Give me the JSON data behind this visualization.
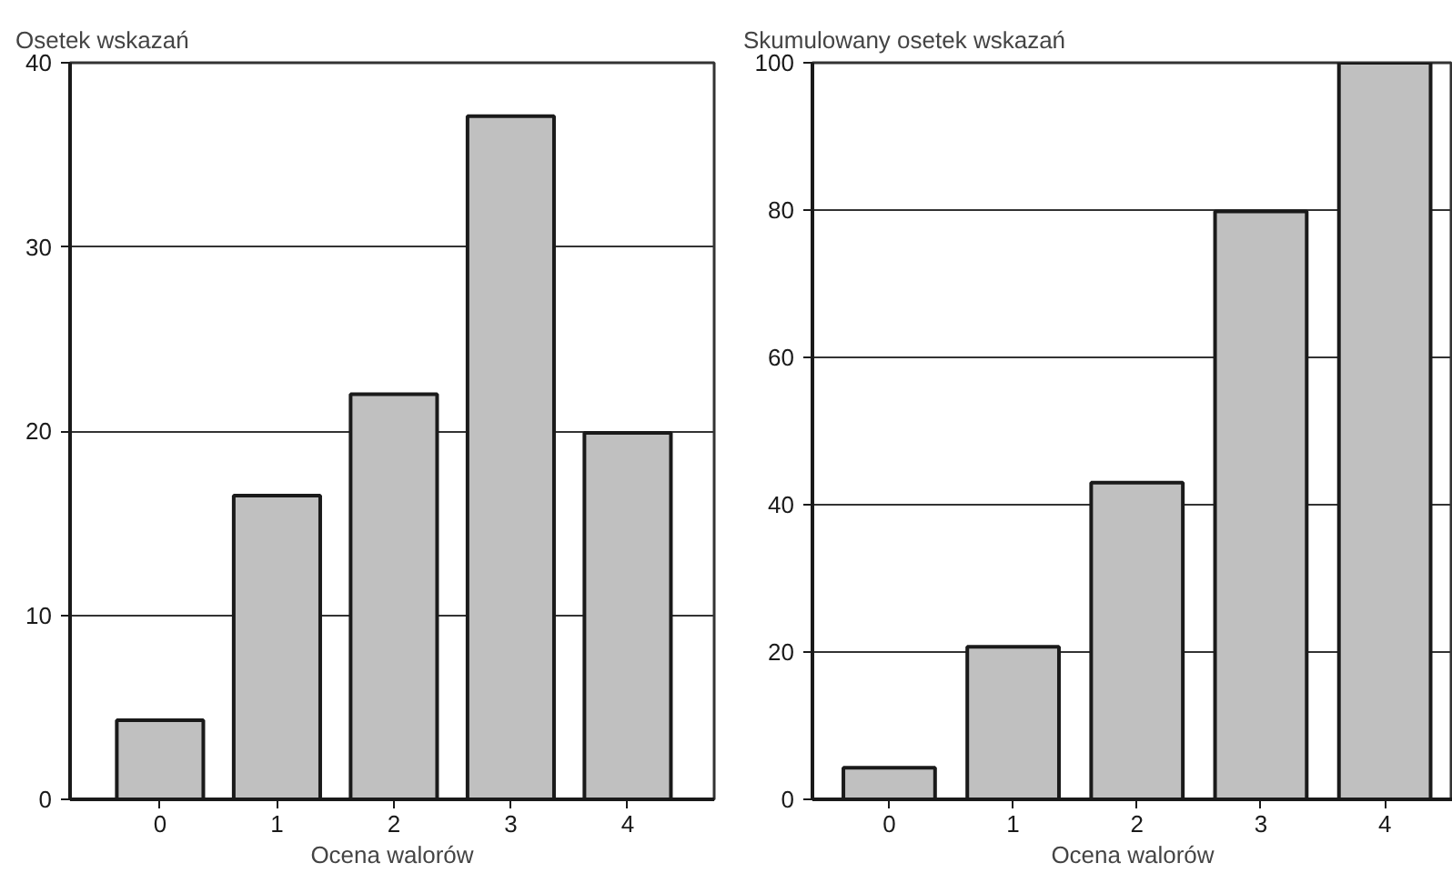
{
  "chart_data": [
    {
      "type": "bar",
      "title": "Osetek wskazań",
      "xlabel": "Ocena walorów",
      "categories": [
        "0",
        "1",
        "2",
        "3",
        "4"
      ],
      "values": [
        4.3,
        16.5,
        22.0,
        37.1,
        19.9
      ],
      "color": "#c0c0c0",
      "ylim": [
        0,
        40
      ],
      "yticks": [
        0,
        10,
        20,
        30,
        40
      ],
      "grid": "y"
    },
    {
      "type": "bar",
      "title": "Skumulowany osetek wskazań",
      "xlabel": "Ocena walorów",
      "categories": [
        "0",
        "1",
        "2",
        "3",
        "4"
      ],
      "values": [
        4.3,
        20.7,
        43.0,
        79.8,
        100
      ],
      "color": "#c0c0c0",
      "ylim": [
        0,
        100
      ],
      "yticks": [
        0,
        20,
        40,
        60,
        80,
        100
      ],
      "grid": "y"
    }
  ]
}
